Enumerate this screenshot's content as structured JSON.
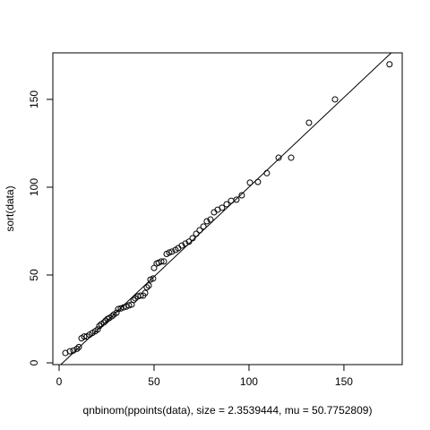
{
  "chart_data": {
    "type": "scatter",
    "x_label": "qnbinom(ppoints(data), size = 2.3539444, mu = 50.7752809)",
    "y_label": "sort(data)",
    "xlim": [
      -3.3,
      180.7
    ],
    "ylim": [
      -1,
      176.5
    ],
    "xticks": [
      0,
      50,
      100,
      150
    ],
    "yticks": [
      0,
      50,
      100,
      150
    ],
    "color": "#000000",
    "reference_line": {
      "intercept": -1.9,
      "slope": 1.02
    },
    "x": [
      3.3,
      5.7,
      7.5,
      9.4,
      10.4,
      11.8,
      13.2,
      14.6,
      16,
      17.5,
      19,
      20.3,
      21.2,
      22.2,
      23.6,
      24.5,
      25.5,
      26.4,
      27.8,
      28.8,
      30.2,
      31.1,
      32.5,
      34,
      35.4,
      36.8,
      38.2,
      39.2,
      40.1,
      41.5,
      42.9,
      44.3,
      45.3,
      46.2,
      47.2,
      48.1,
      49.5,
      50,
      51.4,
      52.4,
      53.8,
      55.2,
      56.6,
      58,
      59.4,
      61.3,
      62.7,
      64.6,
      66.5,
      68.4,
      70.3,
      72.2,
      74,
      76,
      77.8,
      79.7,
      81.6,
      83.5,
      85.8,
      88.2,
      90.6,
      93.4,
      96.2,
      100.5,
      104.7,
      109.4,
      115.6,
      122.2,
      131.6,
      145.3,
      174
    ],
    "values": [
      5.6,
      6.6,
      7,
      8,
      9,
      14,
      15,
      15,
      16,
      17,
      18,
      19,
      21,
      22,
      23,
      24,
      25,
      25.5,
      26.5,
      27.5,
      28.5,
      30.6,
      31,
      31.6,
      32,
      32.7,
      33.2,
      35.7,
      36.7,
      37.8,
      38.3,
      38.3,
      39.8,
      43,
      44,
      47.4,
      48,
      54,
      56.6,
      57,
      57.7,
      57.7,
      62,
      62.8,
      63.3,
      64.3,
      65.3,
      66.8,
      67.9,
      69,
      71,
      73.5,
      75.5,
      77.6,
      80.6,
      81.6,
      85.7,
      87.2,
      88.3,
      90.3,
      92.3,
      92.9,
      95.4,
      102.6,
      103,
      108,
      116.8,
      116.8,
      136.7,
      150,
      170
    ]
  }
}
